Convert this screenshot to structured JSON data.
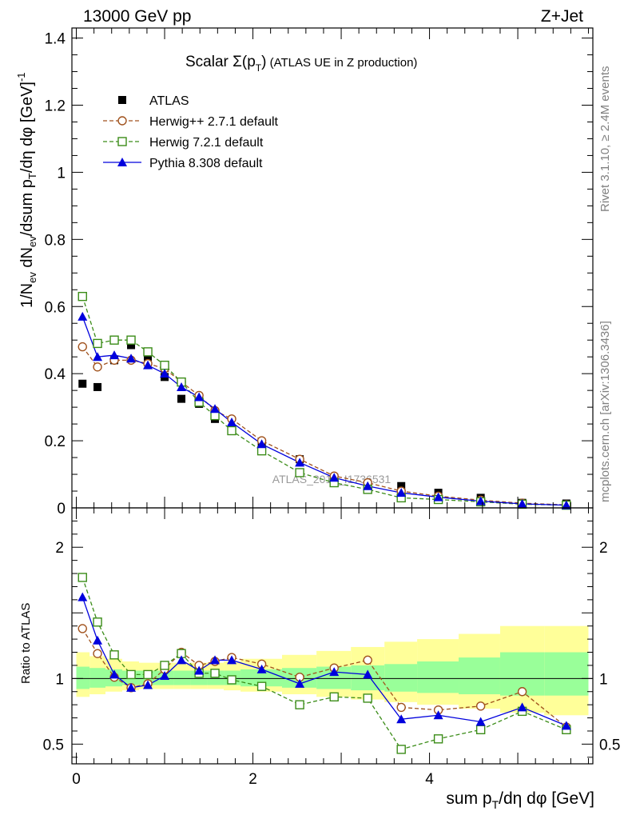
{
  "header": {
    "left_label": "13000 GeV pp",
    "right_label": "Z+Jet"
  },
  "side_labels": {
    "rivet": "Rivet 3.1.10, ≥ 2.4M events",
    "mcplots": "mcplots.cern.ch [arXiv:1306.3436]"
  },
  "watermark": "ATLAS_2019_I1736531",
  "colors": {
    "atlas": "#000000",
    "herwigpp": "#a0521d",
    "herwig7": "#3b8c18",
    "pythia": "#0000dd",
    "band_inner": "#99ff99",
    "band_outer": "#ffff99"
  },
  "chart_data": [
    {
      "type": "scatter",
      "title": "Scalar Σ(pT) (ATLAS UE in Z production)",
      "title_parts": {
        "prefix": "Scalar ",
        "sigma": "Σ(p",
        "sub": "T",
        "close": ")",
        "suffix": " (ATLAS UE in Z production)"
      },
      "ylabel": "1/Nev dNev/dsum pT/dη dφ [GeV]-1",
      "xlim": [
        -0.05,
        5.85
      ],
      "ylim": [
        0,
        1.43
      ],
      "y_ticks": [
        "0",
        "0.2",
        "0.4",
        "0.6",
        "0.8",
        "1",
        "1.2",
        "1.4"
      ],
      "y_tick_values": [
        0,
        0.2,
        0.4,
        0.6,
        0.8,
        1.0,
        1.2,
        1.4
      ],
      "legend_position": "top-left",
      "x": [
        0.07,
        0.24,
        0.43,
        0.62,
        0.81,
        1.0,
        1.19,
        1.39,
        1.57,
        1.76,
        2.1,
        2.53,
        2.92,
        3.3,
        3.68,
        4.1,
        4.58,
        5.05,
        5.55
      ],
      "series": [
        {
          "name": "ATLAS",
          "key": "atlas",
          "marker": "filled-square",
          "values": [
            0.37,
            0.36,
            0.44,
            0.485,
            0.45,
            0.39,
            0.325,
            0.31,
            0.265,
            0.23,
            0.185,
            0.145,
            0.09,
            0.065,
            0.065,
            0.045,
            0.03,
            0.015,
            0.013
          ]
        },
        {
          "name": "Herwig++ 2.7.1 default",
          "key": "herwigpp",
          "marker": "open-circle",
          "dashed": true,
          "values": [
            0.48,
            0.42,
            0.44,
            0.44,
            0.43,
            0.415,
            0.375,
            0.335,
            0.29,
            0.265,
            0.2,
            0.145,
            0.095,
            0.075,
            0.05,
            0.035,
            0.023,
            0.014,
            0.009
          ]
        },
        {
          "name": "Herwig 7.2.1 default",
          "key": "herwig7",
          "marker": "open-square",
          "dashed": true,
          "values": [
            0.63,
            0.49,
            0.5,
            0.5,
            0.465,
            0.425,
            0.375,
            0.315,
            0.275,
            0.23,
            0.17,
            0.105,
            0.075,
            0.055,
            0.03,
            0.025,
            0.018,
            0.011,
            0.008
          ]
        },
        {
          "name": "Pythia 8.308 default",
          "key": "pythia",
          "marker": "filled-triangle",
          "dashed": false,
          "values": [
            0.57,
            0.45,
            0.455,
            0.445,
            0.425,
            0.4,
            0.36,
            0.33,
            0.295,
            0.255,
            0.19,
            0.135,
            0.09,
            0.065,
            0.045,
            0.032,
            0.02,
            0.012,
            0.008
          ]
        }
      ]
    },
    {
      "type": "scatter",
      "ylabel": "Ratio to ATLAS",
      "xlabel": "sum pT/dη dφ [GeV]",
      "xlim": [
        -0.05,
        5.85
      ],
      "ylim": [
        0.35,
        2.3
      ],
      "x_ticks": [
        "0",
        "2",
        "4"
      ],
      "x_tick_values": [
        0,
        2,
        4
      ],
      "y_ticks": [
        "0.5",
        "1",
        "2"
      ],
      "y_tick_values": [
        0.5,
        1,
        2
      ],
      "reference_line": 1,
      "bins": [
        [
          0.0,
          0.15
        ],
        [
          0.15,
          0.33
        ],
        [
          0.33,
          0.52
        ],
        [
          0.52,
          0.71
        ],
        [
          0.71,
          0.9
        ],
        [
          0.9,
          1.1
        ],
        [
          1.1,
          1.29
        ],
        [
          1.29,
          1.48
        ],
        [
          1.48,
          1.67
        ],
        [
          1.67,
          1.86
        ],
        [
          1.86,
          2.33
        ],
        [
          2.33,
          2.72
        ],
        [
          2.72,
          3.11
        ],
        [
          3.11,
          3.49
        ],
        [
          3.49,
          3.86
        ],
        [
          3.86,
          4.33
        ],
        [
          4.33,
          4.8
        ],
        [
          4.8,
          5.3
        ],
        [
          5.3,
          5.8
        ]
      ],
      "band_inner": [
        [
          0.92,
          1.09
        ],
        [
          0.93,
          1.08
        ],
        [
          0.94,
          1.07
        ],
        [
          0.95,
          1.06
        ],
        [
          0.95,
          1.06
        ],
        [
          0.95,
          1.06
        ],
        [
          0.95,
          1.06
        ],
        [
          0.95,
          1.06
        ],
        [
          0.95,
          1.06
        ],
        [
          0.95,
          1.06
        ],
        [
          0.94,
          1.07
        ],
        [
          0.93,
          1.08
        ],
        [
          0.92,
          1.09
        ],
        [
          0.91,
          1.1
        ],
        [
          0.9,
          1.11
        ],
        [
          0.89,
          1.13
        ],
        [
          0.88,
          1.16
        ],
        [
          0.87,
          1.2
        ],
        [
          0.87,
          1.2
        ]
      ],
      "band_outer": [
        [
          0.86,
          1.2
        ],
        [
          0.88,
          1.17
        ],
        [
          0.9,
          1.15
        ],
        [
          0.91,
          1.13
        ],
        [
          0.92,
          1.12
        ],
        [
          0.92,
          1.12
        ],
        [
          0.92,
          1.12
        ],
        [
          0.92,
          1.12
        ],
        [
          0.92,
          1.12
        ],
        [
          0.91,
          1.13
        ],
        [
          0.9,
          1.15
        ],
        [
          0.88,
          1.18
        ],
        [
          0.86,
          1.21
        ],
        [
          0.84,
          1.24
        ],
        [
          0.82,
          1.28
        ],
        [
          0.8,
          1.3
        ],
        [
          0.77,
          1.34
        ],
        [
          0.74,
          1.4
        ],
        [
          0.72,
          1.4
        ]
      ],
      "x": [
        0.07,
        0.24,
        0.43,
        0.62,
        0.81,
        1.0,
        1.19,
        1.39,
        1.57,
        1.76,
        2.1,
        2.53,
        2.92,
        3.3,
        3.68,
        4.1,
        4.58,
        5.05,
        5.55
      ],
      "series": [
        {
          "name": "Herwig++ 2.7.1 default",
          "key": "herwigpp",
          "marker": "open-circle",
          "dashed": true,
          "values": [
            1.38,
            1.19,
            1.01,
            0.93,
            0.96,
            1.07,
            1.2,
            1.1,
            1.13,
            1.16,
            1.11,
            1.01,
            1.08,
            1.14,
            0.78,
            0.76,
            0.79,
            0.9,
            0.63
          ]
        },
        {
          "name": "Herwig 7.2.1 default",
          "key": "herwig7",
          "marker": "open-square",
          "dashed": true,
          "values": [
            1.77,
            1.43,
            1.18,
            1.03,
            1.03,
            1.1,
            1.19,
            1.04,
            1.04,
            0.99,
            0.94,
            0.8,
            0.86,
            0.85,
            0.46,
            0.54,
            0.61,
            0.75,
            0.61
          ]
        },
        {
          "name": "Pythia 8.308 default",
          "key": "pythia",
          "marker": "filled-triangle",
          "dashed": false,
          "values": [
            1.62,
            1.29,
            1.03,
            0.93,
            0.95,
            1.02,
            1.14,
            1.06,
            1.14,
            1.14,
            1.07,
            0.96,
            1.05,
            1.03,
            0.69,
            0.72,
            0.67,
            0.78,
            0.64
          ]
        }
      ]
    }
  ]
}
